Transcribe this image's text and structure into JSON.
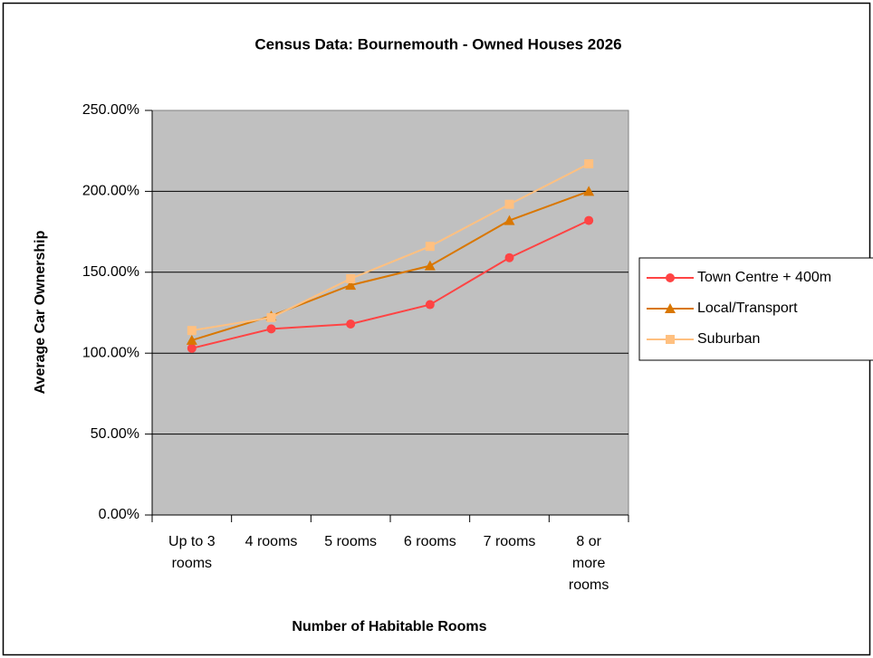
{
  "chart_data": {
    "type": "line",
    "title": "Census Data: Bournemouth - Owned Houses 2026",
    "x_label": "Number of Habitable Rooms",
    "y_label": "Average Car Ownership",
    "categories": [
      "Up to 3 rooms",
      "4 rooms",
      "5 rooms",
      "6 rooms",
      "7 rooms",
      "8 or more rooms"
    ],
    "series": [
      {
        "name": "Town Centre + 400m",
        "color": "#ff4444",
        "marker": "circle",
        "values": [
          103,
          115,
          118,
          130,
          159,
          182
        ]
      },
      {
        "name": "Local/Transport",
        "color": "#d97700",
        "marker": "triangle",
        "values": [
          108,
          123,
          142,
          154,
          182,
          200
        ]
      },
      {
        "name": "Suburban",
        "color": "#ffc080",
        "marker": "square",
        "values": [
          114,
          122,
          146,
          166,
          192,
          217
        ]
      }
    ],
    "ylim": [
      0,
      250
    ],
    "yticks": [
      {
        "value": 0,
        "label": "0.00%"
      },
      {
        "value": 50,
        "label": "50.00%"
      },
      {
        "value": 100,
        "label": "100.00%"
      },
      {
        "value": 150,
        "label": "150.00%"
      },
      {
        "value": 200,
        "label": "200.00%"
      },
      {
        "value": 250,
        "label": "250.00%"
      }
    ],
    "grid": true,
    "legend": "right"
  }
}
